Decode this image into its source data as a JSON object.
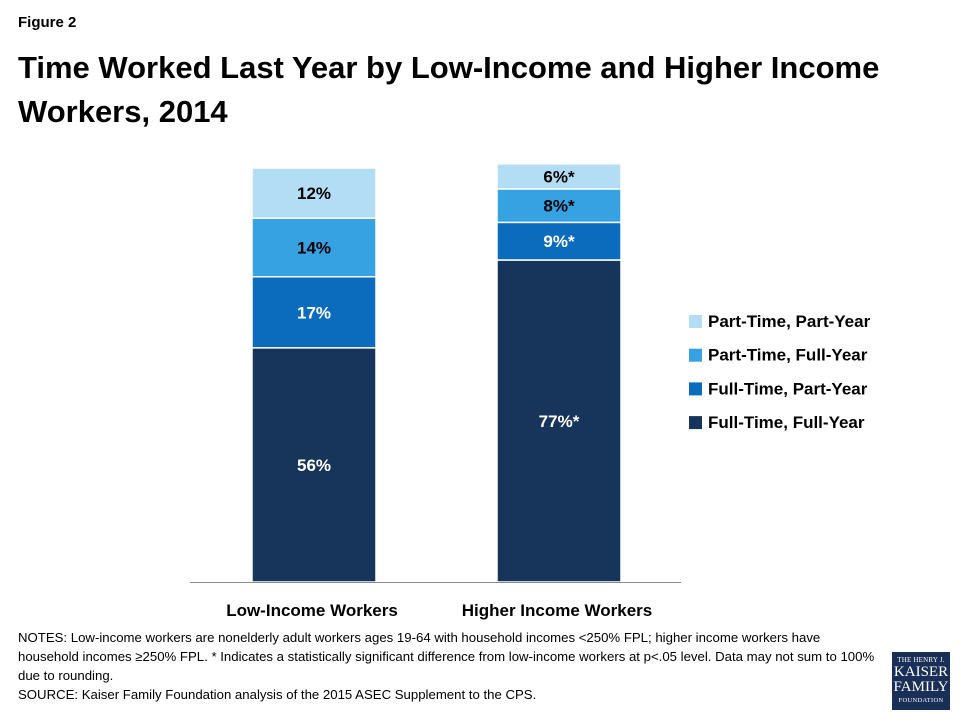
{
  "figure_label": "Figure 2",
  "title": "Time Worked Last Year by Low-Income and Higher Income Workers, 2014",
  "notes": [
    "NOTES: Low-income workers are nonelderly adult workers ages 19-64 with household incomes <250% FPL; higher income workers have household incomes ≥250% FPL. * Indicates a statistically significant difference from low-income workers at p<.05 level. Data may not sum to 100% due to rounding.",
    "SOURCE: Kaiser Family Foundation analysis of the 2015 ASEC Supplement to the CPS."
  ],
  "logo": {
    "line1": "THE HENRY J.",
    "line2": "KAISER",
    "line3": "FAMILY",
    "line4": "FOUNDATION"
  },
  "chart_data": {
    "type": "bar",
    "stacked": true,
    "categories": [
      "Low-Income Workers",
      "Higher Income Workers"
    ],
    "series": [
      {
        "name": "Full-Time, Full-Year",
        "values": [
          56,
          77
        ],
        "labels": [
          "56%",
          "77%*"
        ],
        "color": "#17345a"
      },
      {
        "name": "Full-Time, Part-Year",
        "values": [
          17,
          9
        ],
        "labels": [
          "17%",
          "9%*"
        ],
        "color": "#0b6bbd"
      },
      {
        "name": "Part-Time, Full-Year",
        "values": [
          14,
          8
        ],
        "labels": [
          "14%",
          "8%*"
        ],
        "color": "#36a2e1"
      },
      {
        "name": "Part-Time, Part-Year",
        "values": [
          12,
          6
        ],
        "labels": [
          "12%",
          "6%*"
        ],
        "color": "#b3ddf5"
      }
    ],
    "ylim": [
      0,
      100
    ],
    "legend_order": [
      "Part-Time, Part-Year",
      "Part-Time, Full-Year",
      "Full-Time, Part-Year",
      "Full-Time, Full-Year"
    ],
    "legend_position": "right",
    "grid": false
  }
}
